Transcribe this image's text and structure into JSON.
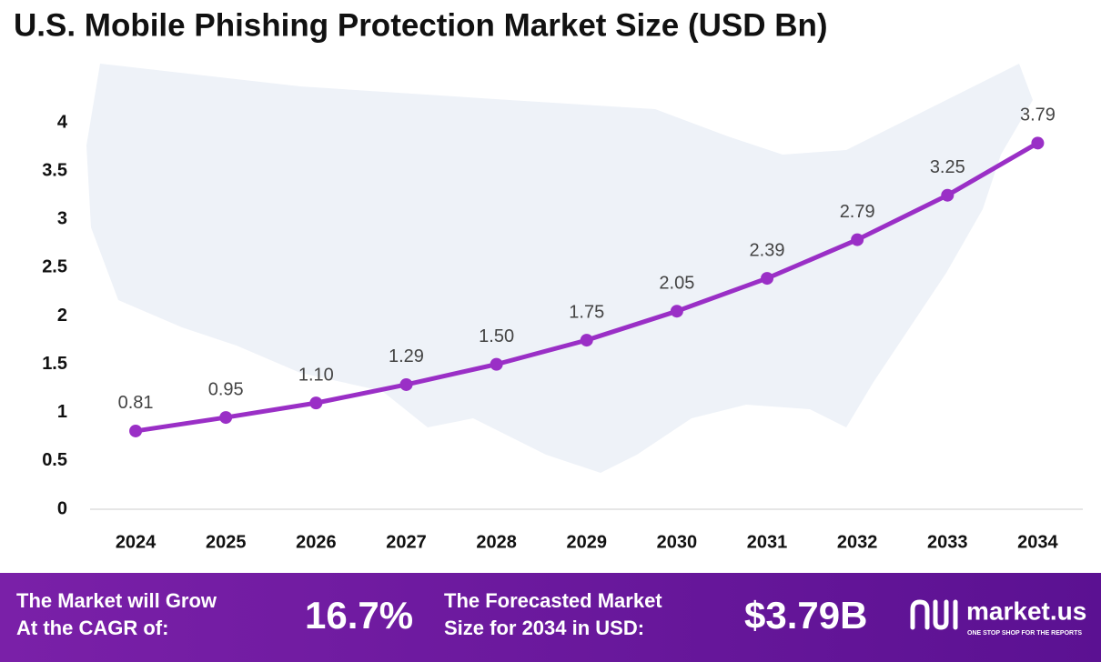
{
  "chart_data": {
    "type": "line",
    "title": "U.S. Mobile Phishing Protection Market Size (USD Bn)",
    "categories": [
      "2024",
      "2025",
      "2026",
      "2027",
      "2028",
      "2029",
      "2030",
      "2031",
      "2032",
      "2033",
      "2034"
    ],
    "values": [
      0.81,
      0.95,
      1.1,
      1.29,
      1.5,
      1.75,
      2.05,
      2.39,
      2.79,
      3.25,
      3.79
    ],
    "value_labels": [
      "0.81",
      "0.95",
      "1.10",
      "1.29",
      "1.50",
      "1.75",
      "2.05",
      "2.39",
      "2.79",
      "3.25",
      "3.79"
    ],
    "color": "#9a2fc6",
    "ylim": [
      0,
      4
    ],
    "yticks": [
      0,
      0.5,
      1,
      1.5,
      2,
      2.5,
      3,
      3.5,
      4
    ],
    "grid": false
  },
  "footer": {
    "cagr_text": [
      "The Market will Grow",
      "At the CAGR of:"
    ],
    "cagr_value": "16.7%",
    "forecast_text": [
      "The Forecasted Market",
      "Size for 2034 in USD:"
    ],
    "forecast_value": "$3.79B",
    "brand": "market.us",
    "tagline": "ONE STOP SHOP FOR THE REPORTS"
  }
}
